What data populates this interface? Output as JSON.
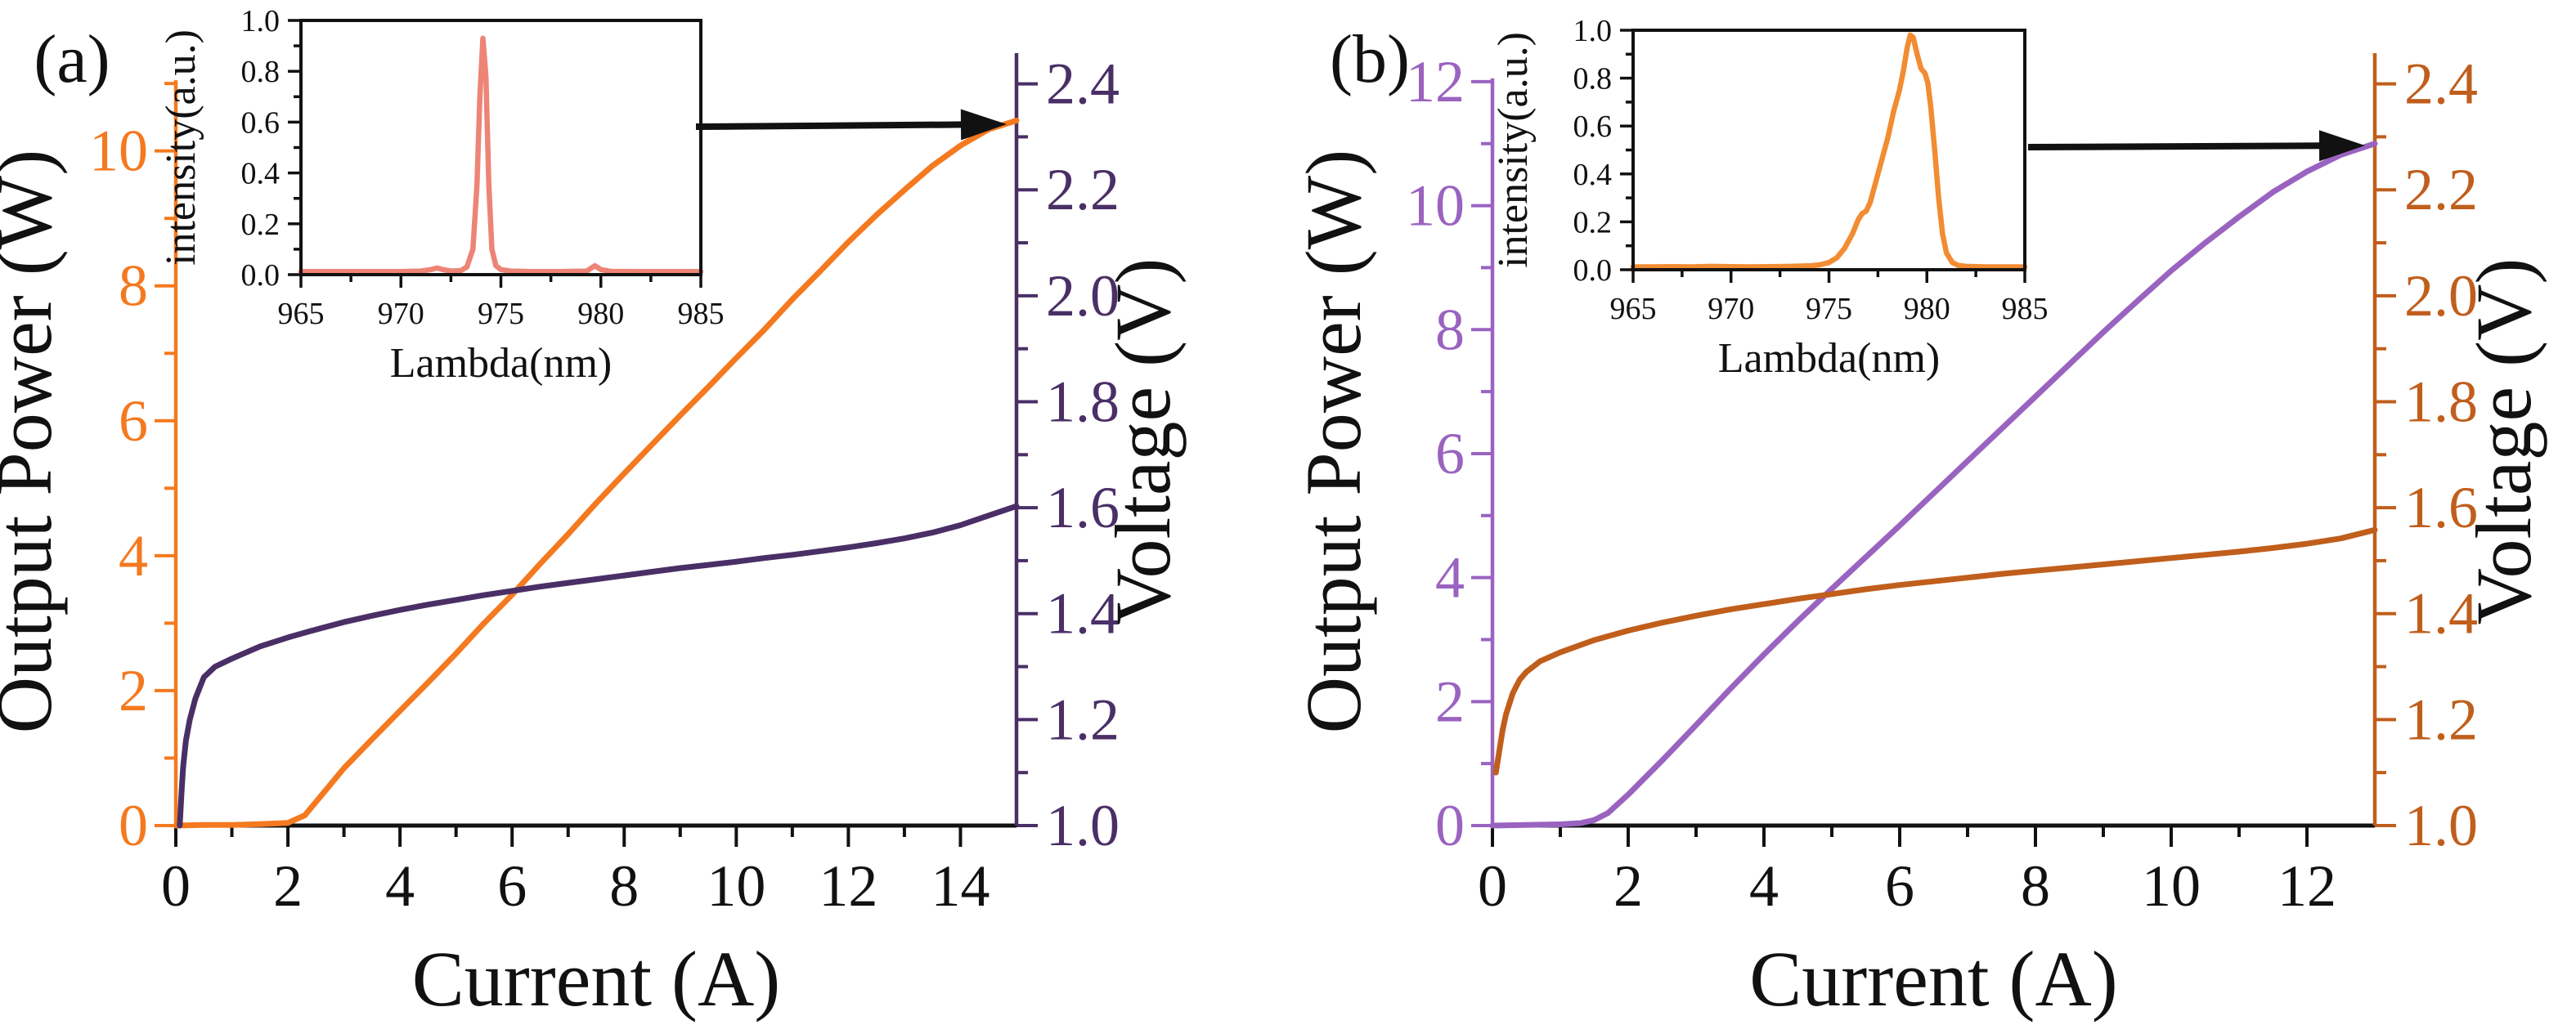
{
  "figure": {
    "background": "#ffffff",
    "description_text": "Laser diode L-I-V characteristic curves with lasing spectrum insets"
  },
  "chart_data": [
    {
      "type": "line",
      "panel_label": "(a)",
      "xlabel": "Current (A)",
      "ylabel_left": "Output Power (W)",
      "ylabel_right": "Voltage (V)",
      "x_range": [
        0,
        15
      ],
      "x_major_ticks": [
        "0",
        "2",
        "4",
        "6",
        "8",
        "10",
        "12",
        "14"
      ],
      "x_minor_ticks": [
        1,
        3,
        5,
        7,
        9,
        11,
        13
      ],
      "left_range": [
        0,
        11.45
      ],
      "left_major_ticks": [
        "0",
        "2",
        "4",
        "6",
        "8",
        "10"
      ],
      "left_minor_ticks": [
        1,
        3,
        5,
        7,
        9,
        11
      ],
      "right_range": [
        1.0,
        2.458
      ],
      "right_major_ticks": [
        "1.0",
        "1.2",
        "1.4",
        "1.6",
        "1.8",
        "2.0",
        "2.2",
        "2.4"
      ],
      "right_minor_ticks": [
        1.1,
        1.3,
        1.5,
        1.7,
        1.9,
        2.1,
        2.3
      ],
      "colors": {
        "power": "#F4791F",
        "voltage": "#4A2F66",
        "left_axis": "#F4791F",
        "right_axis": "#4A2F66",
        "text": "#111111",
        "arrow": "#111111"
      },
      "series": [
        {
          "name": "output-power",
          "axis": "left",
          "points": [
            [
              0,
              0
            ],
            [
              0.5,
              0.01
            ],
            [
              1,
              0.01
            ],
            [
              1.5,
              0.02
            ],
            [
              2,
              0.04
            ],
            [
              2.3,
              0.15
            ],
            [
              2.6,
              0.45
            ],
            [
              3,
              0.85
            ],
            [
              3.5,
              1.28
            ],
            [
              4,
              1.7
            ],
            [
              4.5,
              2.12
            ],
            [
              5,
              2.55
            ],
            [
              5.5,
              3.0
            ],
            [
              6,
              3.42
            ],
            [
              6.5,
              3.88
            ],
            [
              7,
              4.32
            ],
            [
              7.5,
              4.78
            ],
            [
              8,
              5.22
            ],
            [
              8.5,
              5.65
            ],
            [
              9,
              6.08
            ],
            [
              9.5,
              6.5
            ],
            [
              10,
              6.93
            ],
            [
              10.5,
              7.35
            ],
            [
              11,
              7.8
            ],
            [
              11.5,
              8.22
            ],
            [
              12,
              8.65
            ],
            [
              12.5,
              9.05
            ],
            [
              13,
              9.42
            ],
            [
              13.5,
              9.78
            ],
            [
              14,
              10.08
            ],
            [
              14.5,
              10.32
            ],
            [
              15,
              10.45
            ]
          ]
        },
        {
          "name": "voltage",
          "axis": "right",
          "points": [
            [
              0.07,
              1.0
            ],
            [
              0.1,
              1.06
            ],
            [
              0.13,
              1.11
            ],
            [
              0.18,
              1.16
            ],
            [
              0.25,
              1.2
            ],
            [
              0.35,
              1.24
            ],
            [
              0.5,
              1.28
            ],
            [
              0.7,
              1.3
            ],
            [
              1,
              1.315
            ],
            [
              1.5,
              1.338
            ],
            [
              2,
              1.355
            ],
            [
              2.5,
              1.37
            ],
            [
              3,
              1.384
            ],
            [
              3.5,
              1.396
            ],
            [
              4,
              1.407
            ],
            [
              4.5,
              1.417
            ],
            [
              5,
              1.426
            ],
            [
              5.5,
              1.435
            ],
            [
              6,
              1.443
            ],
            [
              6.5,
              1.451
            ],
            [
              7,
              1.458
            ],
            [
              7.5,
              1.465
            ],
            [
              8,
              1.472
            ],
            [
              8.5,
              1.479
            ],
            [
              9,
              1.486
            ],
            [
              9.5,
              1.492
            ],
            [
              10,
              1.498
            ],
            [
              10.5,
              1.505
            ],
            [
              11,
              1.511
            ],
            [
              11.5,
              1.518
            ],
            [
              12,
              1.525
            ],
            [
              12.5,
              1.533
            ],
            [
              13,
              1.542
            ],
            [
              13.5,
              1.553
            ],
            [
              14,
              1.567
            ],
            [
              14.5,
              1.585
            ],
            [
              15,
              1.603
            ]
          ]
        }
      ],
      "annotation_arrow": true,
      "inset": {
        "type": "line",
        "xlabel": "Lambda(nm)",
        "ylabel": "intensity(a.u.)",
        "x_range": [
          965,
          985
        ],
        "x_major_ticks": [
          "965",
          "970",
          "975",
          "980",
          "985"
        ],
        "x_minor_ticks": [
          967.5,
          972.5,
          977.5,
          982.5
        ],
        "y_range": [
          0,
          1
        ],
        "y_major_ticks": [
          "0.0",
          "0.2",
          "0.4",
          "0.6",
          "0.8",
          "1.0"
        ],
        "y_minor_ticks": [
          0.1,
          0.3,
          0.5,
          0.7,
          0.9
        ],
        "color": "#ED8476",
        "peak_nm": 974.2,
        "points": [
          [
            965,
            0.012
          ],
          [
            966,
            0.012
          ],
          [
            967,
            0.012
          ],
          [
            968,
            0.012
          ],
          [
            969,
            0.012
          ],
          [
            970,
            0.012
          ],
          [
            971,
            0.014
          ],
          [
            971.5,
            0.02
          ],
          [
            971.8,
            0.026
          ],
          [
            972.1,
            0.02
          ],
          [
            972.5,
            0.014
          ],
          [
            973,
            0.016
          ],
          [
            973.3,
            0.03
          ],
          [
            973.6,
            0.1
          ],
          [
            973.8,
            0.35
          ],
          [
            973.95,
            0.7
          ],
          [
            974.1,
            0.93
          ],
          [
            974.25,
            0.78
          ],
          [
            974.4,
            0.35
          ],
          [
            974.55,
            0.1
          ],
          [
            974.75,
            0.035
          ],
          [
            975,
            0.02
          ],
          [
            975.5,
            0.014
          ],
          [
            976.5,
            0.012
          ],
          [
            978,
            0.012
          ],
          [
            979.3,
            0.014
          ],
          [
            979.7,
            0.035
          ],
          [
            980,
            0.02
          ],
          [
            980.5,
            0.013
          ],
          [
            982,
            0.012
          ],
          [
            983.5,
            0.012
          ],
          [
            985,
            0.012
          ]
        ]
      }
    },
    {
      "type": "line",
      "panel_label": "(b)",
      "xlabel": "Current (A)",
      "ylabel_left": "Output Power (W)",
      "ylabel_right": "Voltage (V)",
      "x_range": [
        0,
        13
      ],
      "x_major_ticks": [
        "0",
        "2",
        "4",
        "6",
        "8",
        "10",
        "12"
      ],
      "x_minor_ticks": [
        1,
        3,
        5,
        7,
        9,
        11
      ],
      "left_range": [
        0,
        12.46
      ],
      "left_major_ticks": [
        "0",
        "2",
        "4",
        "6",
        "8",
        "10",
        "12"
      ],
      "left_minor_ticks": [
        1,
        3,
        5,
        7,
        9,
        11
      ],
      "right_range": [
        1.0,
        2.458
      ],
      "right_major_ticks": [
        "1.0",
        "1.2",
        "1.4",
        "1.6",
        "1.8",
        "2.0",
        "2.2",
        "2.4"
      ],
      "right_minor_ticks": [
        1.1,
        1.3,
        1.5,
        1.7,
        1.9,
        2.1,
        2.3
      ],
      "colors": {
        "power": "#9A63C0",
        "voltage": "#C05E1C",
        "left_axis": "#9A63C0",
        "right_axis": "#C05E1C",
        "text": "#111111",
        "arrow": "#111111"
      },
      "series": [
        {
          "name": "output-power",
          "axis": "left",
          "points": [
            [
              0,
              0
            ],
            [
              0.5,
              0.01
            ],
            [
              1,
              0.02
            ],
            [
              1.3,
              0.04
            ],
            [
              1.5,
              0.09
            ],
            [
              1.7,
              0.2
            ],
            [
              2,
              0.5
            ],
            [
              2.5,
              1.05
            ],
            [
              3,
              1.62
            ],
            [
              3.5,
              2.2
            ],
            [
              4,
              2.76
            ],
            [
              4.5,
              3.3
            ],
            [
              5,
              3.82
            ],
            [
              5.5,
              4.33
            ],
            [
              6,
              4.84
            ],
            [
              6.5,
              5.36
            ],
            [
              7,
              5.88
            ],
            [
              7.5,
              6.4
            ],
            [
              8,
              6.92
            ],
            [
              8.5,
              7.44
            ],
            [
              9,
              7.96
            ],
            [
              9.5,
              8.46
            ],
            [
              10,
              8.95
            ],
            [
              10.5,
              9.4
            ],
            [
              11,
              9.82
            ],
            [
              11.5,
              10.22
            ],
            [
              12,
              10.55
            ],
            [
              12.5,
              10.82
            ],
            [
              13,
              11.0
            ]
          ]
        },
        {
          "name": "voltage",
          "axis": "right",
          "points": [
            [
              0.05,
              1.1
            ],
            [
              0.1,
              1.14
            ],
            [
              0.15,
              1.18
            ],
            [
              0.2,
              1.21
            ],
            [
              0.3,
              1.25
            ],
            [
              0.4,
              1.275
            ],
            [
              0.5,
              1.29
            ],
            [
              0.7,
              1.31
            ],
            [
              1,
              1.327
            ],
            [
              1.5,
              1.35
            ],
            [
              2,
              1.368
            ],
            [
              2.5,
              1.383
            ],
            [
              3,
              1.396
            ],
            [
              3.5,
              1.408
            ],
            [
              4,
              1.418
            ],
            [
              4.5,
              1.428
            ],
            [
              5,
              1.437
            ],
            [
              5.5,
              1.446
            ],
            [
              6,
              1.454
            ],
            [
              6.5,
              1.461
            ],
            [
              7,
              1.468
            ],
            [
              7.5,
              1.475
            ],
            [
              8,
              1.481
            ],
            [
              8.5,
              1.487
            ],
            [
              9,
              1.493
            ],
            [
              9.5,
              1.499
            ],
            [
              10,
              1.505
            ],
            [
              10.5,
              1.511
            ],
            [
              11,
              1.517
            ],
            [
              11.5,
              1.524
            ],
            [
              12,
              1.532
            ],
            [
              12.5,
              1.542
            ],
            [
              13,
              1.558
            ]
          ]
        }
      ],
      "annotation_arrow": true,
      "inset": {
        "type": "line",
        "xlabel": "Lambda(nm)",
        "ylabel": "intensity(a.u.)",
        "x_range": [
          965,
          985
        ],
        "x_major_ticks": [
          "965",
          "970",
          "975",
          "980",
          "985"
        ],
        "x_minor_ticks": [
          967.5,
          972.5,
          977.5,
          982.5
        ],
        "y_range": [
          0,
          1
        ],
        "y_major_ticks": [
          "0.0",
          "0.2",
          "0.4",
          "0.6",
          "0.8",
          "1.0"
        ],
        "y_minor_ticks": [
          0.1,
          0.3,
          0.5,
          0.7,
          0.9
        ],
        "color": "#F28C33",
        "peak_nm": 979.2,
        "points": [
          [
            965,
            0.012
          ],
          [
            966,
            0.012
          ],
          [
            967,
            0.013
          ],
          [
            968,
            0.012
          ],
          [
            969,
            0.014
          ],
          [
            970,
            0.013
          ],
          [
            971,
            0.012
          ],
          [
            972,
            0.013
          ],
          [
            973,
            0.014
          ],
          [
            974,
            0.016
          ],
          [
            974.5,
            0.02
          ],
          [
            975,
            0.03
          ],
          [
            975.4,
            0.05
          ],
          [
            975.8,
            0.09
          ],
          [
            976.2,
            0.15
          ],
          [
            976.5,
            0.21
          ],
          [
            976.7,
            0.235
          ],
          [
            976.9,
            0.245
          ],
          [
            977.1,
            0.28
          ],
          [
            977.4,
            0.37
          ],
          [
            977.7,
            0.46
          ],
          [
            978,
            0.55
          ],
          [
            978.3,
            0.66
          ],
          [
            978.6,
            0.75
          ],
          [
            978.8,
            0.83
          ],
          [
            979,
            0.93
          ],
          [
            979.15,
            0.98
          ],
          [
            979.3,
            0.97
          ],
          [
            979.5,
            0.9
          ],
          [
            979.7,
            0.84
          ],
          [
            979.9,
            0.82
          ],
          [
            980.05,
            0.78
          ],
          [
            980.2,
            0.68
          ],
          [
            980.4,
            0.5
          ],
          [
            980.6,
            0.3
          ],
          [
            980.8,
            0.15
          ],
          [
            981,
            0.07
          ],
          [
            981.3,
            0.03
          ],
          [
            981.6,
            0.018
          ],
          [
            982,
            0.014
          ],
          [
            983,
            0.012
          ],
          [
            984,
            0.012
          ],
          [
            985,
            0.012
          ]
        ]
      }
    }
  ]
}
